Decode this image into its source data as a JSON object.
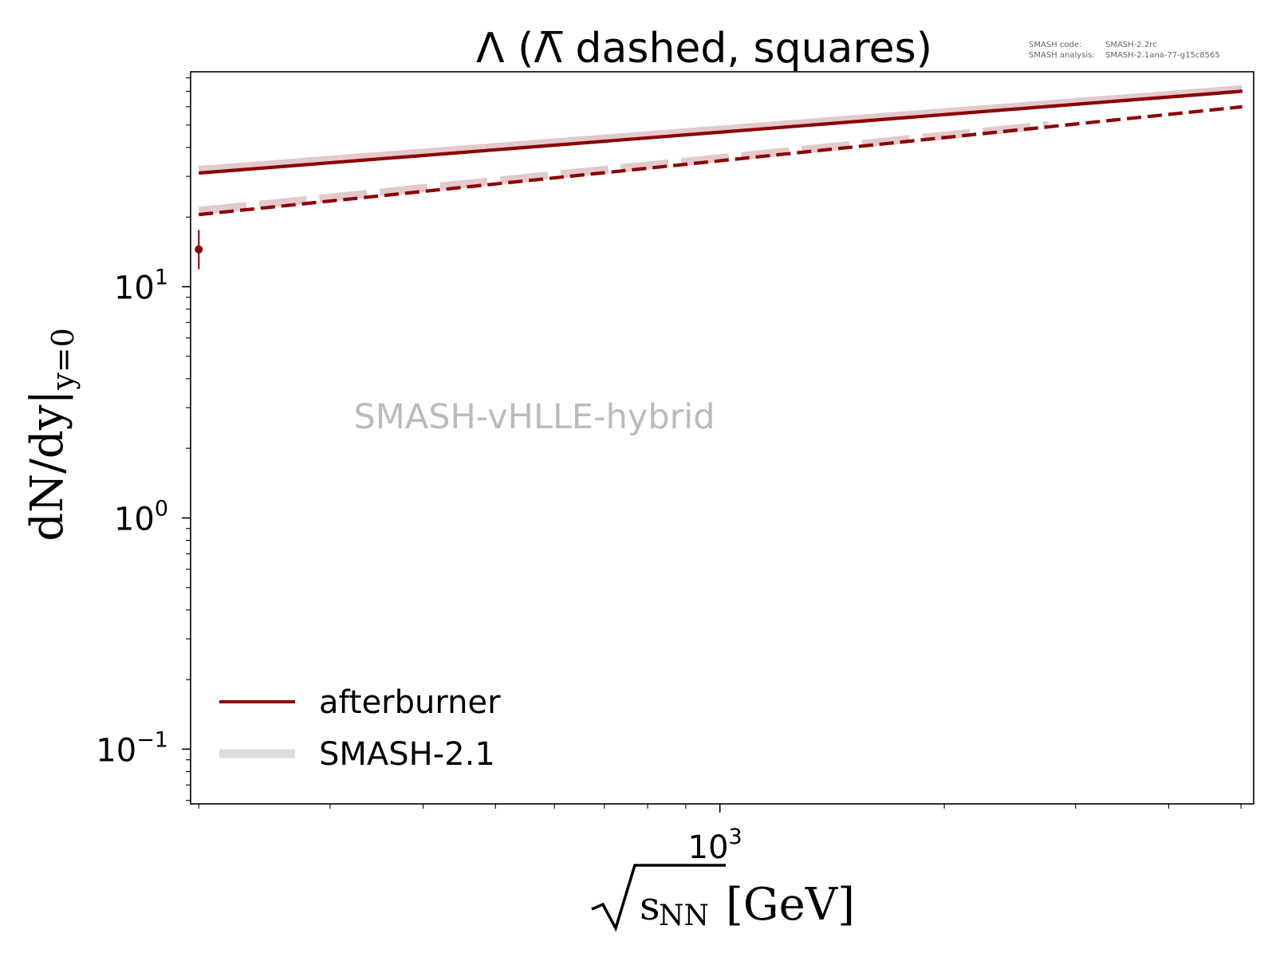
{
  "meta": {
    "code_label": "SMASH code:",
    "code_value": "SMASH-2.2rc",
    "analysis_label": "SMASH analysis:",
    "analysis_value": "SMASH-2.1ana-77-g15c8565"
  },
  "watermark": "SMASH-vHLLE-hybrid",
  "chart_data": {
    "type": "line",
    "title": "Λ (Λ̅ dashed, squares)",
    "xlabel": "√sNN [GeV]",
    "xlabel_parts": {
      "sqrt_arg": "sNN",
      "sub": "NN",
      "unit": "[GeV]"
    },
    "ylabel": "dN/dy|y=0",
    "ylabel_parts": {
      "main": "dN/dy|",
      "sub": "y=0"
    },
    "xscale": "log",
    "yscale": "log",
    "xlim": [
      195,
      5200
    ],
    "ylim": [
      0.058,
      85
    ],
    "x_ticks": [
      {
        "value": 1000,
        "base": "10",
        "exp": "3"
      }
    ],
    "y_ticks": [
      {
        "value": 0.1,
        "base": "10",
        "exp": "−1"
      },
      {
        "value": 1,
        "base": "10",
        "exp": "0"
      },
      {
        "value": 10,
        "base": "10",
        "exp": "1"
      }
    ],
    "grid": false,
    "legend": {
      "position": "bottom-left",
      "entries": [
        {
          "label": "afterburner",
          "color": "#8b0000",
          "style": "solid"
        },
        {
          "label": "SMASH-2.1",
          "color": "#dddddd",
          "style": "thick"
        }
      ]
    },
    "series": [
      {
        "name": "afterburner",
        "style": "solid",
        "color": "#8b0000",
        "x": [
          200,
          5020
        ],
        "y": [
          31,
          70
        ]
      },
      {
        "name": "afterburner",
        "style": "dashed",
        "color": "#8b0000",
        "x": [
          200,
          5020
        ],
        "y": [
          20.5,
          60
        ]
      },
      {
        "name": "SMASH-2.1",
        "style": "thick-solid",
        "color": "#e3c9cc",
        "x": [
          200,
          5020
        ],
        "y": [
          32,
          71.5
        ]
      },
      {
        "name": "SMASH-2.1",
        "style": "thick-dashed",
        "color": "#e3c9cc",
        "x": [
          200,
          2760
        ],
        "y": [
          21.3,
          50
        ]
      }
    ],
    "points": [
      {
        "x": 200,
        "y": 14.5,
        "err_low": 2.6,
        "err_high": 3.1,
        "color": "#8b0000",
        "marker": "circle"
      }
    ]
  }
}
